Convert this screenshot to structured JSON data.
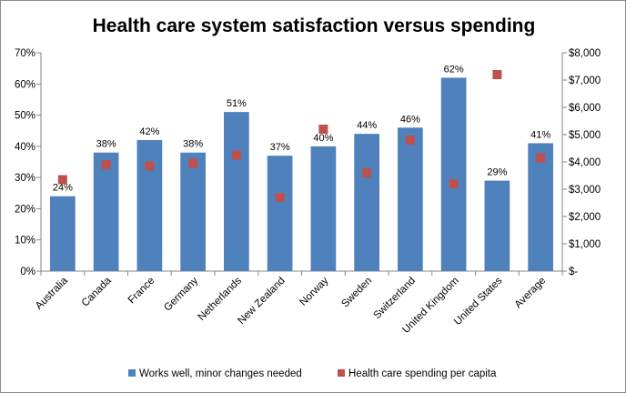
{
  "chart_data": {
    "type": "bar",
    "title": "Health care system satisfaction versus spending",
    "categories": [
      "Australia",
      "Canada",
      "France",
      "Germany",
      "Netherlands",
      "New Zealand",
      "Norway",
      "Sweden",
      "Switzerland",
      "United Kingdom",
      "United States",
      "Average"
    ],
    "series": [
      {
        "name": "Works well, minor changes needed",
        "type": "bar",
        "axis": "left",
        "color": "#4f81bd",
        "values": [
          24,
          38,
          42,
          38,
          51,
          37,
          40,
          44,
          46,
          62,
          29,
          41
        ],
        "labels": [
          "24%",
          "38%",
          "42%",
          "38%",
          "51%",
          "37%",
          "40%",
          "44%",
          "46%",
          "62%",
          "29%",
          "41%"
        ]
      },
      {
        "name": "Health care spending per capita",
        "type": "scatter",
        "axis": "right",
        "color": "#c0504d",
        "values": [
          3350,
          3900,
          3850,
          3950,
          4250,
          2700,
          5200,
          3600,
          4800,
          3200,
          7200,
          4150
        ]
      }
    ],
    "left_axis": {
      "ylim": [
        0,
        70
      ],
      "ticks": [
        0,
        10,
        20,
        30,
        40,
        50,
        60,
        70
      ],
      "tick_labels": [
        "0%",
        "10%",
        "20%",
        "30%",
        "40%",
        "50%",
        "60%",
        "70%"
      ]
    },
    "right_axis": {
      "ylim": [
        0,
        8000
      ],
      "ticks": [
        0,
        1000,
        2000,
        3000,
        4000,
        5000,
        6000,
        7000,
        8000
      ],
      "tick_labels": [
        "$-",
        "$1,000",
        "$2,000",
        "$3,000",
        "$4,000",
        "$5,000",
        "$6,000",
        "$7,000",
        "$8,000"
      ]
    },
    "grid": false,
    "legend_position": "bottom"
  }
}
